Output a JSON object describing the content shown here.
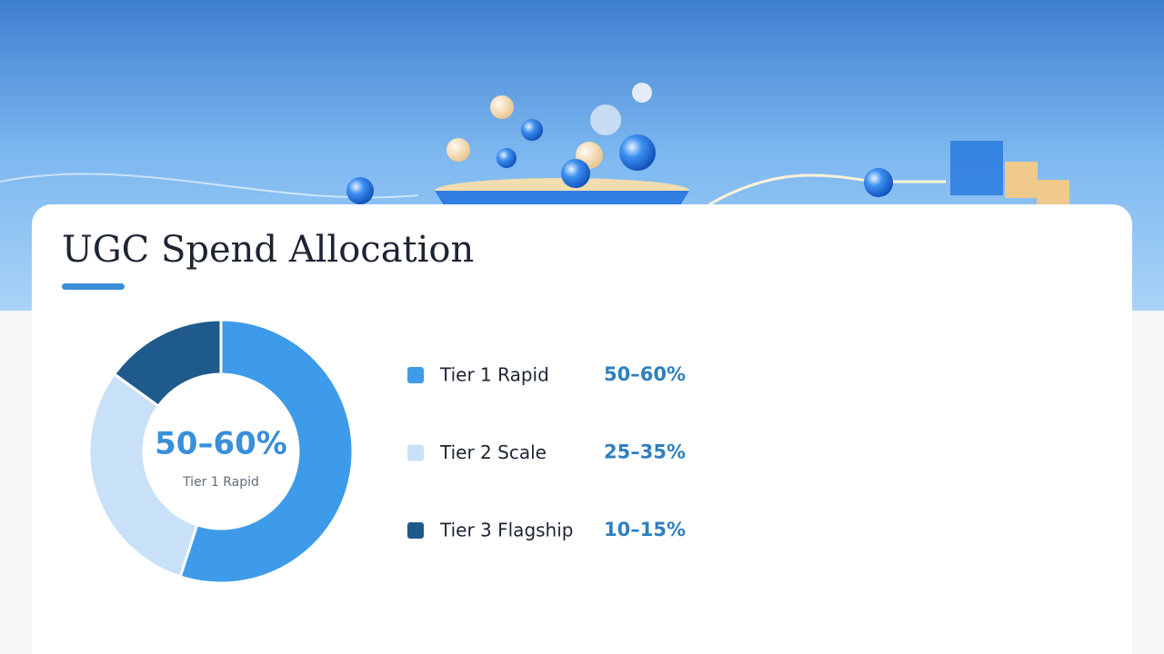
{
  "chart_data": {
    "type": "donut",
    "title": "UGC Spend Allocation",
    "categories": [
      "Tier 1 Rapid",
      "Tier 2 Scale",
      "Tier 3 Flagship"
    ],
    "values": [
      55,
      30,
      15
    ],
    "value_labels": [
      "50–60%",
      "25–35%",
      "10–15%"
    ],
    "colors": [
      "#3d9be9",
      "#c8e0f8",
      "#1f5a8c"
    ]
  }
}
